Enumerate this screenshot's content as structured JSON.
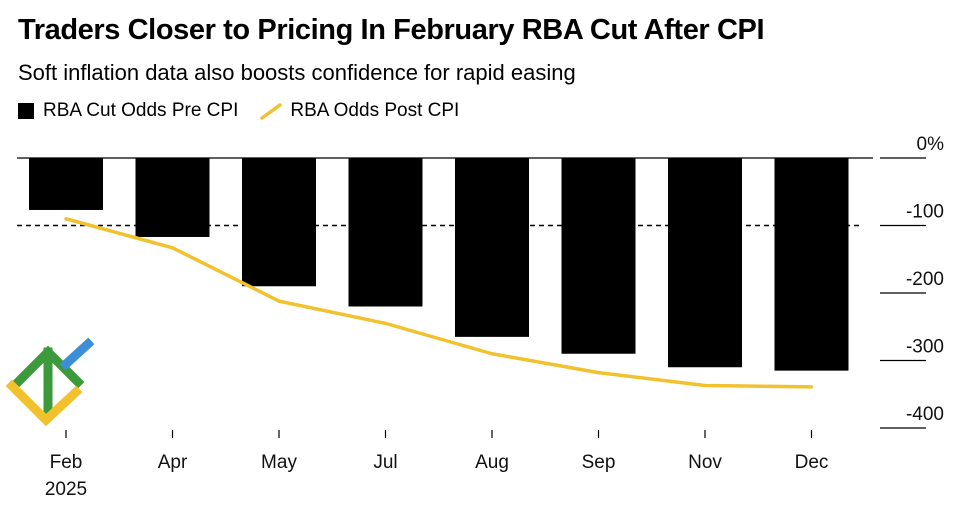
{
  "title": "Traders Closer to Pricing In February RBA Cut After CPI",
  "subtitle": "Soft inflation data also boosts confidence for rapid easing",
  "legend": {
    "pre": "RBA Cut Odds Pre CPI",
    "post": "RBA Odds Post CPI"
  },
  "colors": {
    "bar": "#000000",
    "line": "#f2c12e",
    "logo_green": "#3d9a3a",
    "logo_blue": "#3b8fd6",
    "logo_yellow": "#f2c12e"
  },
  "chart_data": {
    "type": "bar",
    "title": "Traders Closer to Pricing In February RBA Cut After CPI",
    "subtitle": "Soft inflation data also boosts confidence for rapid easing",
    "categories": [
      "Feb",
      "Apr",
      "May",
      "Jul",
      "Aug",
      "Sep",
      "Nov",
      "Dec"
    ],
    "x_sublabels": [
      "2025",
      "",
      "",
      "",
      "",
      "",
      "",
      ""
    ],
    "series": [
      {
        "name": "RBA Cut Odds Pre CPI",
        "type": "bar",
        "values": [
          -77,
          -117,
          -190,
          -220,
          -265,
          -290,
          -310,
          -315
        ]
      },
      {
        "name": "RBA Odds Post CPI",
        "type": "line",
        "values": [
          -90,
          -133,
          -212,
          -245,
          -290,
          -318,
          -337,
          -339
        ]
      }
    ],
    "ylim": [
      -400,
      0
    ],
    "yticks": [
      0,
      -100,
      -200,
      -300,
      -400
    ],
    "ytick_labels": [
      "0%",
      "-100",
      "-200",
      "-300",
      "-400"
    ],
    "reference_line": -100,
    "xlabel": "",
    "ylabel": ""
  }
}
